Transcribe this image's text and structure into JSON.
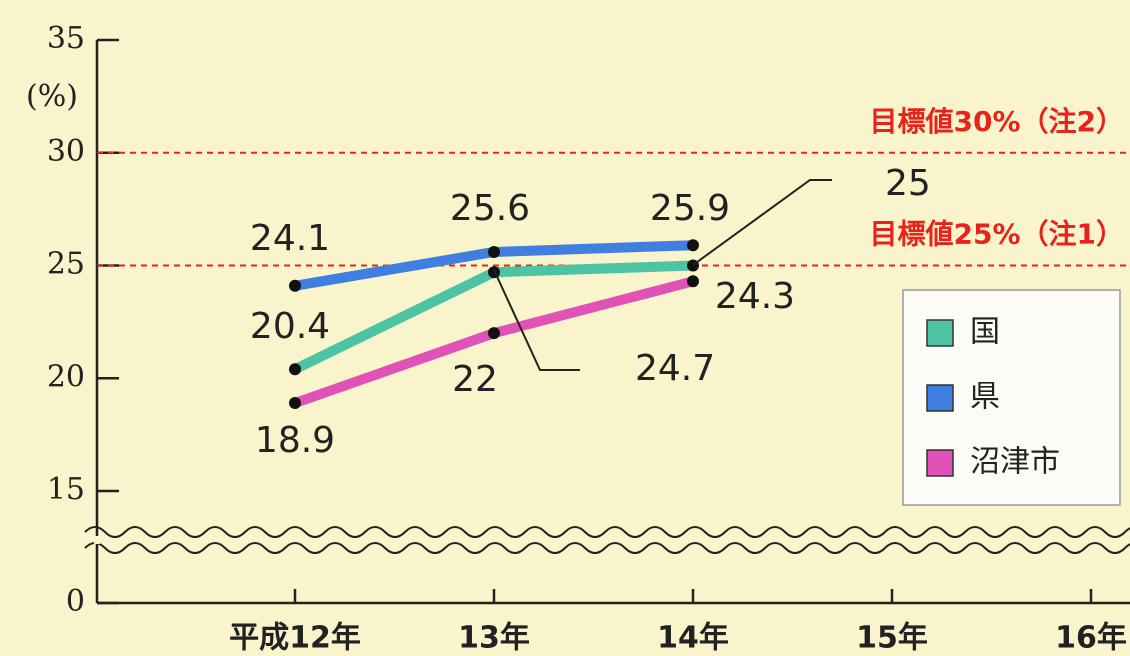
{
  "chart_data": {
    "type": "line",
    "y_label": "(%)",
    "categories": [
      "平成12年",
      "13年",
      "14年",
      "15年",
      "16年"
    ],
    "series": [
      {
        "name": "国",
        "color": "#4cc4a4",
        "values": [
          20.4,
          24.7,
          25.0,
          null,
          null
        ]
      },
      {
        "name": "県",
        "color": "#3f7fe2",
        "values": [
          24.1,
          25.6,
          25.9,
          null,
          null
        ]
      },
      {
        "name": "沼津市",
        "color": "#e052b6",
        "values": [
          18.9,
          22.0,
          24.3,
          null,
          null
        ]
      }
    ],
    "ylim": [
      0,
      35
    ],
    "yticks": [
      0,
      15,
      20,
      25,
      30,
      35
    ],
    "axis_break": true,
    "annotations": [
      {
        "text": "目標値30%（注2）",
        "value": 30
      },
      {
        "text": "目標値25%（注1）",
        "value": 25
      }
    ],
    "legend": "right"
  }
}
